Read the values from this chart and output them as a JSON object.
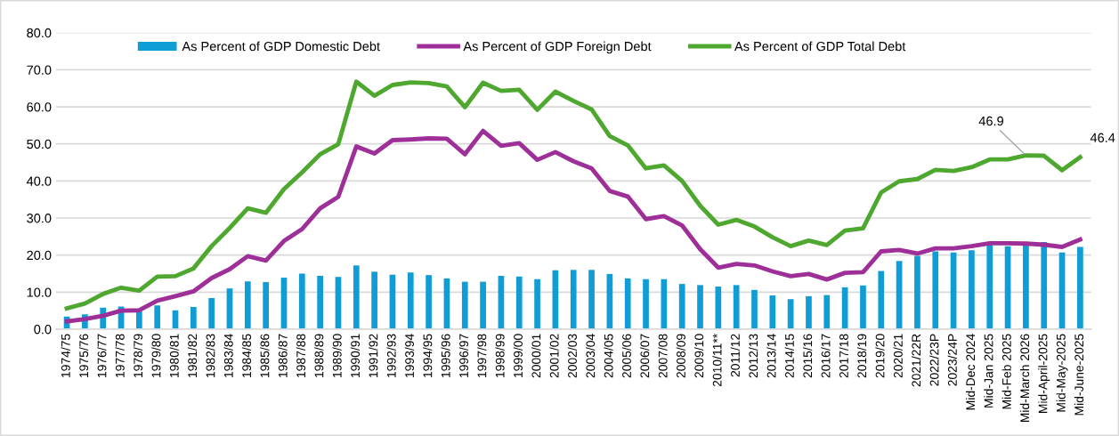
{
  "chart_data": {
    "type": "bar",
    "categories": [
      "1974/75",
      "1975/76",
      "1976/77",
      "1977/78",
      "1978/79",
      "1979/80",
      "1980/81",
      "1981/82",
      "1982/83",
      "1983/84",
      "1984/85",
      "1985/86",
      "1986/87",
      "1987/88",
      "1988/89",
      "1989/90",
      "1990/91",
      "1991/92",
      "1992/93",
      "1993/94",
      "1994/95",
      "1995/96",
      "1996/97",
      "1997/98",
      "1998/99",
      "1999/00",
      "2000/01",
      "2001/02",
      "2002/03",
      "2003/04",
      "2004/05",
      "2005/06",
      "2006/07",
      "2007/08",
      "2008/09",
      "2009/10",
      "2010/11**",
      "2011/12",
      "2012/13",
      "2013/14",
      "2014/15",
      "2015/16",
      "2016/17",
      "2017/18",
      "2018/19",
      "2019/20",
      "2020/21",
      "2021/22R",
      "2022/23P",
      "2023/24P",
      "Mid-Dec 2024",
      "Mid-Jan 2025",
      "Mid-Feb 2025",
      "Mid-March 2026",
      "Mid-April-2025",
      "Mid-May-2025",
      "Mid-June-2025"
    ],
    "series": [
      {
        "name": "As Percent of GDP Domestic Debt",
        "color": "#109dd6",
        "values": [
          3.4,
          4.0,
          5.8,
          6.1,
          5.0,
          6.4,
          5.1,
          6.0,
          8.4,
          11.0,
          12.9,
          12.7,
          13.9,
          15.0,
          14.4,
          14.1,
          17.2,
          15.5,
          14.7,
          15.3,
          14.6,
          13.7,
          12.8,
          12.8,
          14.4,
          14.2,
          13.5,
          15.9,
          16.0,
          16.0,
          14.9,
          13.7,
          13.5,
          13.5,
          12.2,
          11.9,
          11.5,
          11.9,
          10.6,
          9.1,
          8.1,
          8.9,
          9.2,
          11.3,
          11.8,
          15.7,
          18.4,
          19.8,
          21.0,
          20.7,
          21.3,
          22.8,
          22.4,
          23.0,
          23.5,
          20.7,
          22.2
        ]
      },
      {
        "name": "As Percent of GDP Foreign Debt",
        "type": "line",
        "color": "#9e2f99",
        "values": [
          2.1,
          2.7,
          3.6,
          5.0,
          5.1,
          7.7,
          8.9,
          10.2,
          13.8,
          16.2,
          19.7,
          18.5,
          23.8,
          27.0,
          32.6,
          35.7,
          49.3,
          47.4,
          51.0,
          51.2,
          51.5,
          51.4,
          47.2,
          53.5,
          49.5,
          50.2,
          45.7,
          47.8,
          45.3,
          43.4,
          37.3,
          35.8,
          29.7,
          30.5,
          28.0,
          21.6,
          16.6,
          17.6,
          17.2,
          15.6,
          14.3,
          14.9,
          13.4,
          15.2,
          15.4,
          21.0,
          21.4,
          20.4,
          21.8,
          21.8,
          22.4,
          23.2,
          23.2,
          23.1,
          22.8,
          22.2,
          24.2
        ]
      },
      {
        "name": "As Percent of GDP Total Debt",
        "type": "line",
        "color": "#4ea72e",
        "values": [
          5.6,
          6.9,
          9.5,
          11.2,
          10.4,
          14.2,
          14.3,
          16.4,
          22.4,
          27.3,
          32.6,
          31.4,
          37.8,
          42.3,
          47.2,
          49.9,
          66.8,
          63.0,
          65.9,
          66.6,
          66.4,
          65.5,
          59.9,
          66.5,
          64.3,
          64.6,
          59.2,
          64.1,
          61.6,
          59.3,
          52.1,
          49.6,
          43.4,
          44.2,
          40.0,
          33.3,
          28.2,
          29.5,
          27.7,
          24.8,
          22.4,
          23.9,
          22.7,
          26.6,
          27.2,
          36.9,
          39.9,
          40.5,
          43.0,
          42.7,
          43.7,
          45.8,
          45.8,
          46.9,
          46.8,
          42.9,
          46.4
        ],
        "value_labels": [
          null,
          null,
          null,
          null,
          null,
          null,
          null,
          null,
          null,
          null,
          null,
          null,
          null,
          null,
          null,
          null,
          null,
          null,
          null,
          null,
          null,
          null,
          null,
          null,
          null,
          null,
          null,
          null,
          null,
          null,
          null,
          null,
          null,
          null,
          null,
          null,
          null,
          null,
          null,
          null,
          null,
          null,
          null,
          null,
          null,
          null,
          null,
          null,
          null,
          null,
          null,
          null,
          null,
          "46.9",
          null,
          null,
          "46.4"
        ]
      }
    ],
    "ylim": [
      0,
      80
    ],
    "yticks": [
      {
        "value": 0,
        "label": "0.0"
      },
      {
        "value": 10,
        "label": "10.0"
      },
      {
        "value": 20,
        "label": "20.0"
      },
      {
        "value": 30,
        "label": "30.0"
      },
      {
        "value": 40,
        "label": "40.0"
      },
      {
        "value": 50,
        "label": "50.0"
      },
      {
        "value": 60,
        "label": "60.0"
      },
      {
        "value": 70,
        "label": "70.0"
      },
      {
        "value": 80,
        "label": "80.0"
      }
    ],
    "grid": "y",
    "legend": "top",
    "marker": "none",
    "line_style": "solid"
  }
}
